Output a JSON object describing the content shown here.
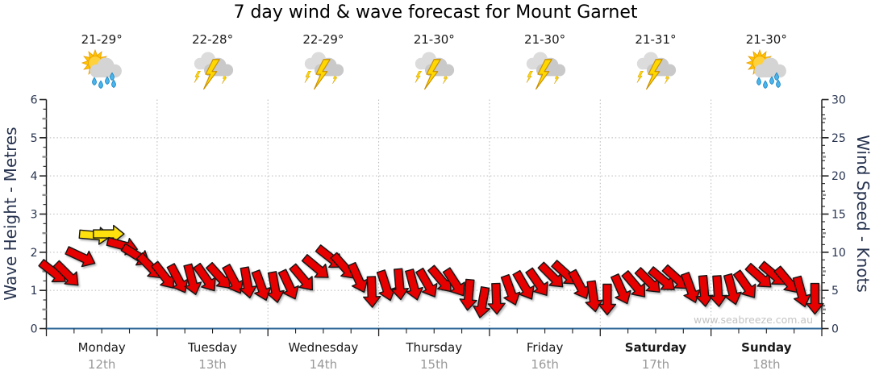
{
  "header": {
    "title": "7 day wind & wave forecast for Mount Garnet"
  },
  "days": [
    {
      "name": "Monday",
      "date": "12th",
      "temp": "21-29°",
      "icon": "sun-cloud-rain",
      "bold": false
    },
    {
      "name": "Tuesday",
      "date": "13th",
      "temp": "22-28°",
      "icon": "storm-lightning",
      "bold": false
    },
    {
      "name": "Wednesday",
      "date": "14th",
      "temp": "22-29°",
      "icon": "storm-lightning",
      "bold": false
    },
    {
      "name": "Thursday",
      "date": "15th",
      "temp": "21-30°",
      "icon": "storm-lightning",
      "bold": false
    },
    {
      "name": "Friday",
      "date": "16th",
      "temp": "21-30°",
      "icon": "storm-lightning",
      "bold": false
    },
    {
      "name": "Saturday",
      "date": "17th",
      "temp": "21-31°",
      "icon": "storm-lightning",
      "bold": true
    },
    {
      "name": "Sunday",
      "date": "18th",
      "temp": "21-30°",
      "icon": "sun-cloud-rain",
      "bold": true
    }
  ],
  "chart_data": {
    "type": "wind-arrow-timeseries",
    "title": "7 day wind & wave forecast for Mount Garnet",
    "left_axis": {
      "label": "Wave Height - Metres",
      "min": 0,
      "max": 6,
      "major_tick": 1,
      "minor_tick": 0.25,
      "mid_tick": 0.5
    },
    "right_axis": {
      "label": "Wind Speed - Knots",
      "min": 0,
      "max": 30,
      "major_tick": 5,
      "minor_tick": 1,
      "mid_tick": 2.5
    },
    "x_axis": {
      "categories": [
        "Monday 12th",
        "Tuesday 13th",
        "Wednesday 14th",
        "Thursday 15th",
        "Friday 16th",
        "Saturday 17th",
        "Sunday 18th"
      ],
      "minor_ticks_per_day": 4,
      "grid_at_day_boundaries": true
    },
    "grid": "dotted",
    "watermark": "www.seabreeze.com.au",
    "samples_per_day": 8,
    "moderate_threshold_knots": 12,
    "colors": {
      "light_wind": "#e60000",
      "moderate_wind": "#ffe10a",
      "bottom_axis": "#2a6496",
      "grid": "#b8b8b8",
      "axis_text": "#26324e",
      "date_text": "#999999"
    },
    "wind": [
      {
        "day": "Monday",
        "knots": [
          7.4,
          7.1,
          9.4,
          12.2,
          12.4,
          10.9,
          9.6,
          8.1
        ],
        "dir": [
          38,
          45,
          25,
          5,
          0,
          15,
          32,
          46
        ]
      },
      {
        "day": "Tuesday",
        "knots": [
          6.9,
          6.5,
          6.4,
          6.6,
          6.8,
          6.4,
          6.0,
          5.6
        ],
        "dir": [
          52,
          62,
          75,
          55,
          48,
          62,
          80,
          70
        ]
      },
      {
        "day": "Wednesday",
        "knots": [
          5.4,
          5.7,
          6.6,
          8.0,
          9.3,
          8.1,
          6.6,
          4.8
        ],
        "dir": [
          80,
          65,
          50,
          40,
          38,
          48,
          66,
          88
        ]
      },
      {
        "day": "Thursday",
        "knots": [
          5.6,
          5.8,
          5.7,
          5.9,
          6.4,
          6.0,
          4.4,
          3.4
        ],
        "dir": [
          72,
          85,
          75,
          60,
          50,
          57,
          95,
          100
        ]
      },
      {
        "day": "Friday",
        "knots": [
          3.9,
          5.0,
          5.6,
          6.0,
          6.9,
          7.2,
          5.7,
          4.2
        ],
        "dir": [
          88,
          70,
          60,
          55,
          45,
          42,
          62,
          82
        ]
      },
      {
        "day": "Saturday",
        "knots": [
          3.8,
          5.1,
          5.7,
          6.2,
          6.4,
          6.6,
          5.3,
          4.9
        ],
        "dir": [
          90,
          66,
          50,
          45,
          40,
          42,
          70,
          85
        ]
      },
      {
        "day": "Sunday",
        "knots": [
          4.9,
          5.1,
          5.7,
          6.8,
          7.1,
          6.3,
          4.8,
          3.9
        ],
        "dir": [
          86,
          75,
          55,
          42,
          40,
          50,
          75,
          90
        ]
      }
    ]
  }
}
